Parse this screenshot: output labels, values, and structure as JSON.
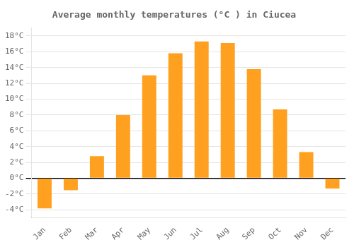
{
  "chart_data": {
    "type": "bar",
    "title": "Average monthly temperatures (°C ) in Ciucea",
    "categories": [
      "Jan",
      "Feb",
      "Mar",
      "Apr",
      "May",
      "Jun",
      "Jul",
      "Aug",
      "Sep",
      "Oct",
      "Nov",
      "Dec"
    ],
    "values": [
      -3.8,
      -1.5,
      2.8,
      8.0,
      13.0,
      15.8,
      17.3,
      17.1,
      13.8,
      8.7,
      3.3,
      -1.3
    ],
    "color": "#FFA020",
    "ylim": [
      -5,
      19
    ],
    "yticks": [
      {
        "value": -4,
        "label": "-4°C"
      },
      {
        "value": -2,
        "label": "-2°C"
      },
      {
        "value": 0,
        "label": "0°C"
      },
      {
        "value": 2,
        "label": "2°C"
      },
      {
        "value": 4,
        "label": "4°C"
      },
      {
        "value": 6,
        "label": "6°C"
      },
      {
        "value": 8,
        "label": "8°C"
      },
      {
        "value": 10,
        "label": "10°C"
      },
      {
        "value": 12,
        "label": "12°C"
      },
      {
        "value": 14,
        "label": "14°C"
      },
      {
        "value": 16,
        "label": "16°C"
      },
      {
        "value": 18,
        "label": "18°C"
      }
    ],
    "grid": true
  }
}
